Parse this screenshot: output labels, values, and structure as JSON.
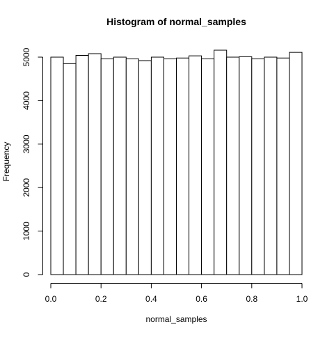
{
  "chart_data": {
    "type": "histogram",
    "title": "Histogram of normal_samples",
    "xlabel": "normal_samples",
    "ylabel": "Frequency",
    "xlim": [
      0.0,
      1.0
    ],
    "ylim": [
      0,
      5000
    ],
    "bin_edges": [
      0.0,
      0.05,
      0.1,
      0.15,
      0.2,
      0.25,
      0.3,
      0.35,
      0.4,
      0.45,
      0.5,
      0.55,
      0.6,
      0.65,
      0.7,
      0.75,
      0.8,
      0.85,
      0.9,
      0.95,
      1.0
    ],
    "values": [
      5000,
      4850,
      5040,
      5080,
      4960,
      5000,
      4960,
      4920,
      5000,
      4960,
      4980,
      5030,
      4960,
      5160,
      5000,
      5010,
      4960,
      5000,
      4980,
      5110
    ],
    "x_ticks": [
      0.0,
      0.2,
      0.4,
      0.6,
      0.8,
      1.0
    ],
    "x_tick_labels": [
      "0.0",
      "0.2",
      "0.4",
      "0.6",
      "0.8",
      "1.0"
    ],
    "y_ticks": [
      0,
      1000,
      2000,
      3000,
      4000,
      5000
    ],
    "y_tick_labels": [
      "0",
      "1000",
      "2000",
      "3000",
      "4000",
      "5000"
    ],
    "bar_fill": "#ffffff",
    "bar_stroke": "#000000",
    "grid": false,
    "legend": "none"
  }
}
